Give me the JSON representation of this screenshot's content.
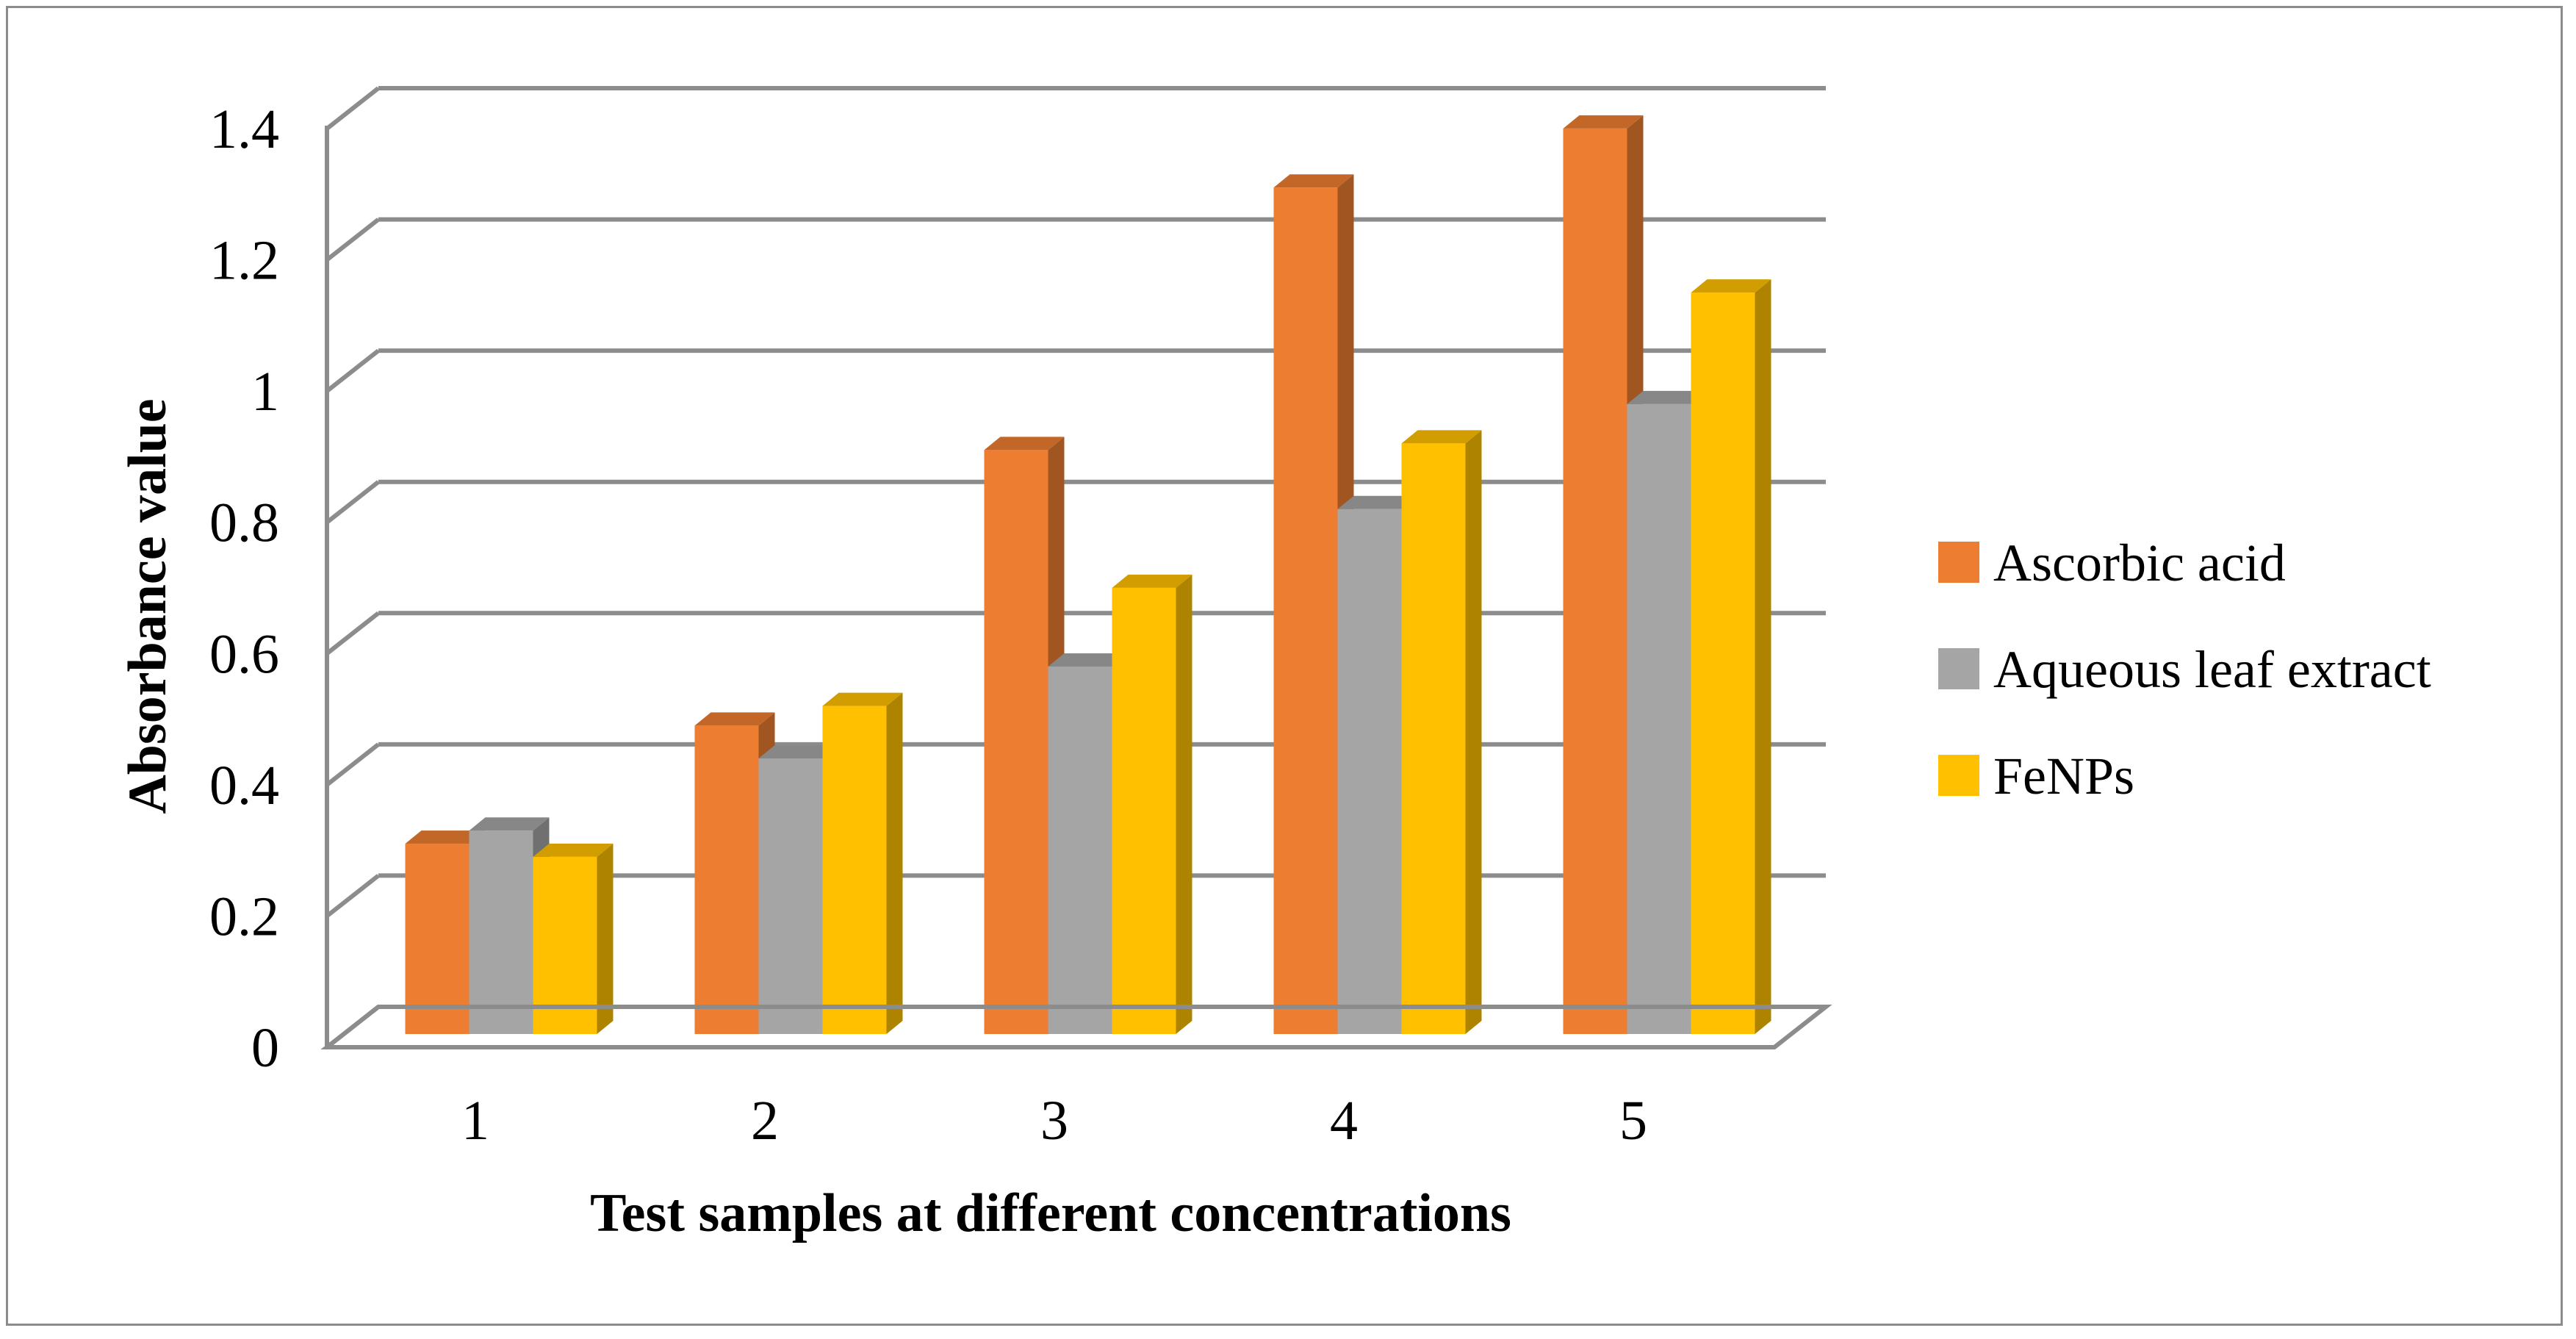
{
  "chart_data": {
    "type": "bar",
    "title": "",
    "xlabel": "Test samples at different concentrations",
    "ylabel": "Absorbance value",
    "categories": [
      "1",
      "2",
      "3",
      "4",
      "5"
    ],
    "yticks": [
      "0",
      "0.2",
      "0.4",
      "0.6",
      "0.8",
      "1",
      "1.2",
      "1.4"
    ],
    "ylim": [
      0,
      1.4
    ],
    "grid": true,
    "legend_position": "right",
    "series": [
      {
        "name": "Ascorbic acid",
        "color": "#ED7D31",
        "values": [
          0.29,
          0.47,
          0.89,
          1.29,
          1.38
        ]
      },
      {
        "name": "Aqueous leaf extract",
        "color": "#A5A5A5",
        "values": [
          0.31,
          0.42,
          0.56,
          0.8,
          0.96
        ]
      },
      {
        "name": "FeNPs",
        "color": "#FFC000",
        "values": [
          0.27,
          0.5,
          0.68,
          0.9,
          1.13
        ]
      }
    ]
  }
}
